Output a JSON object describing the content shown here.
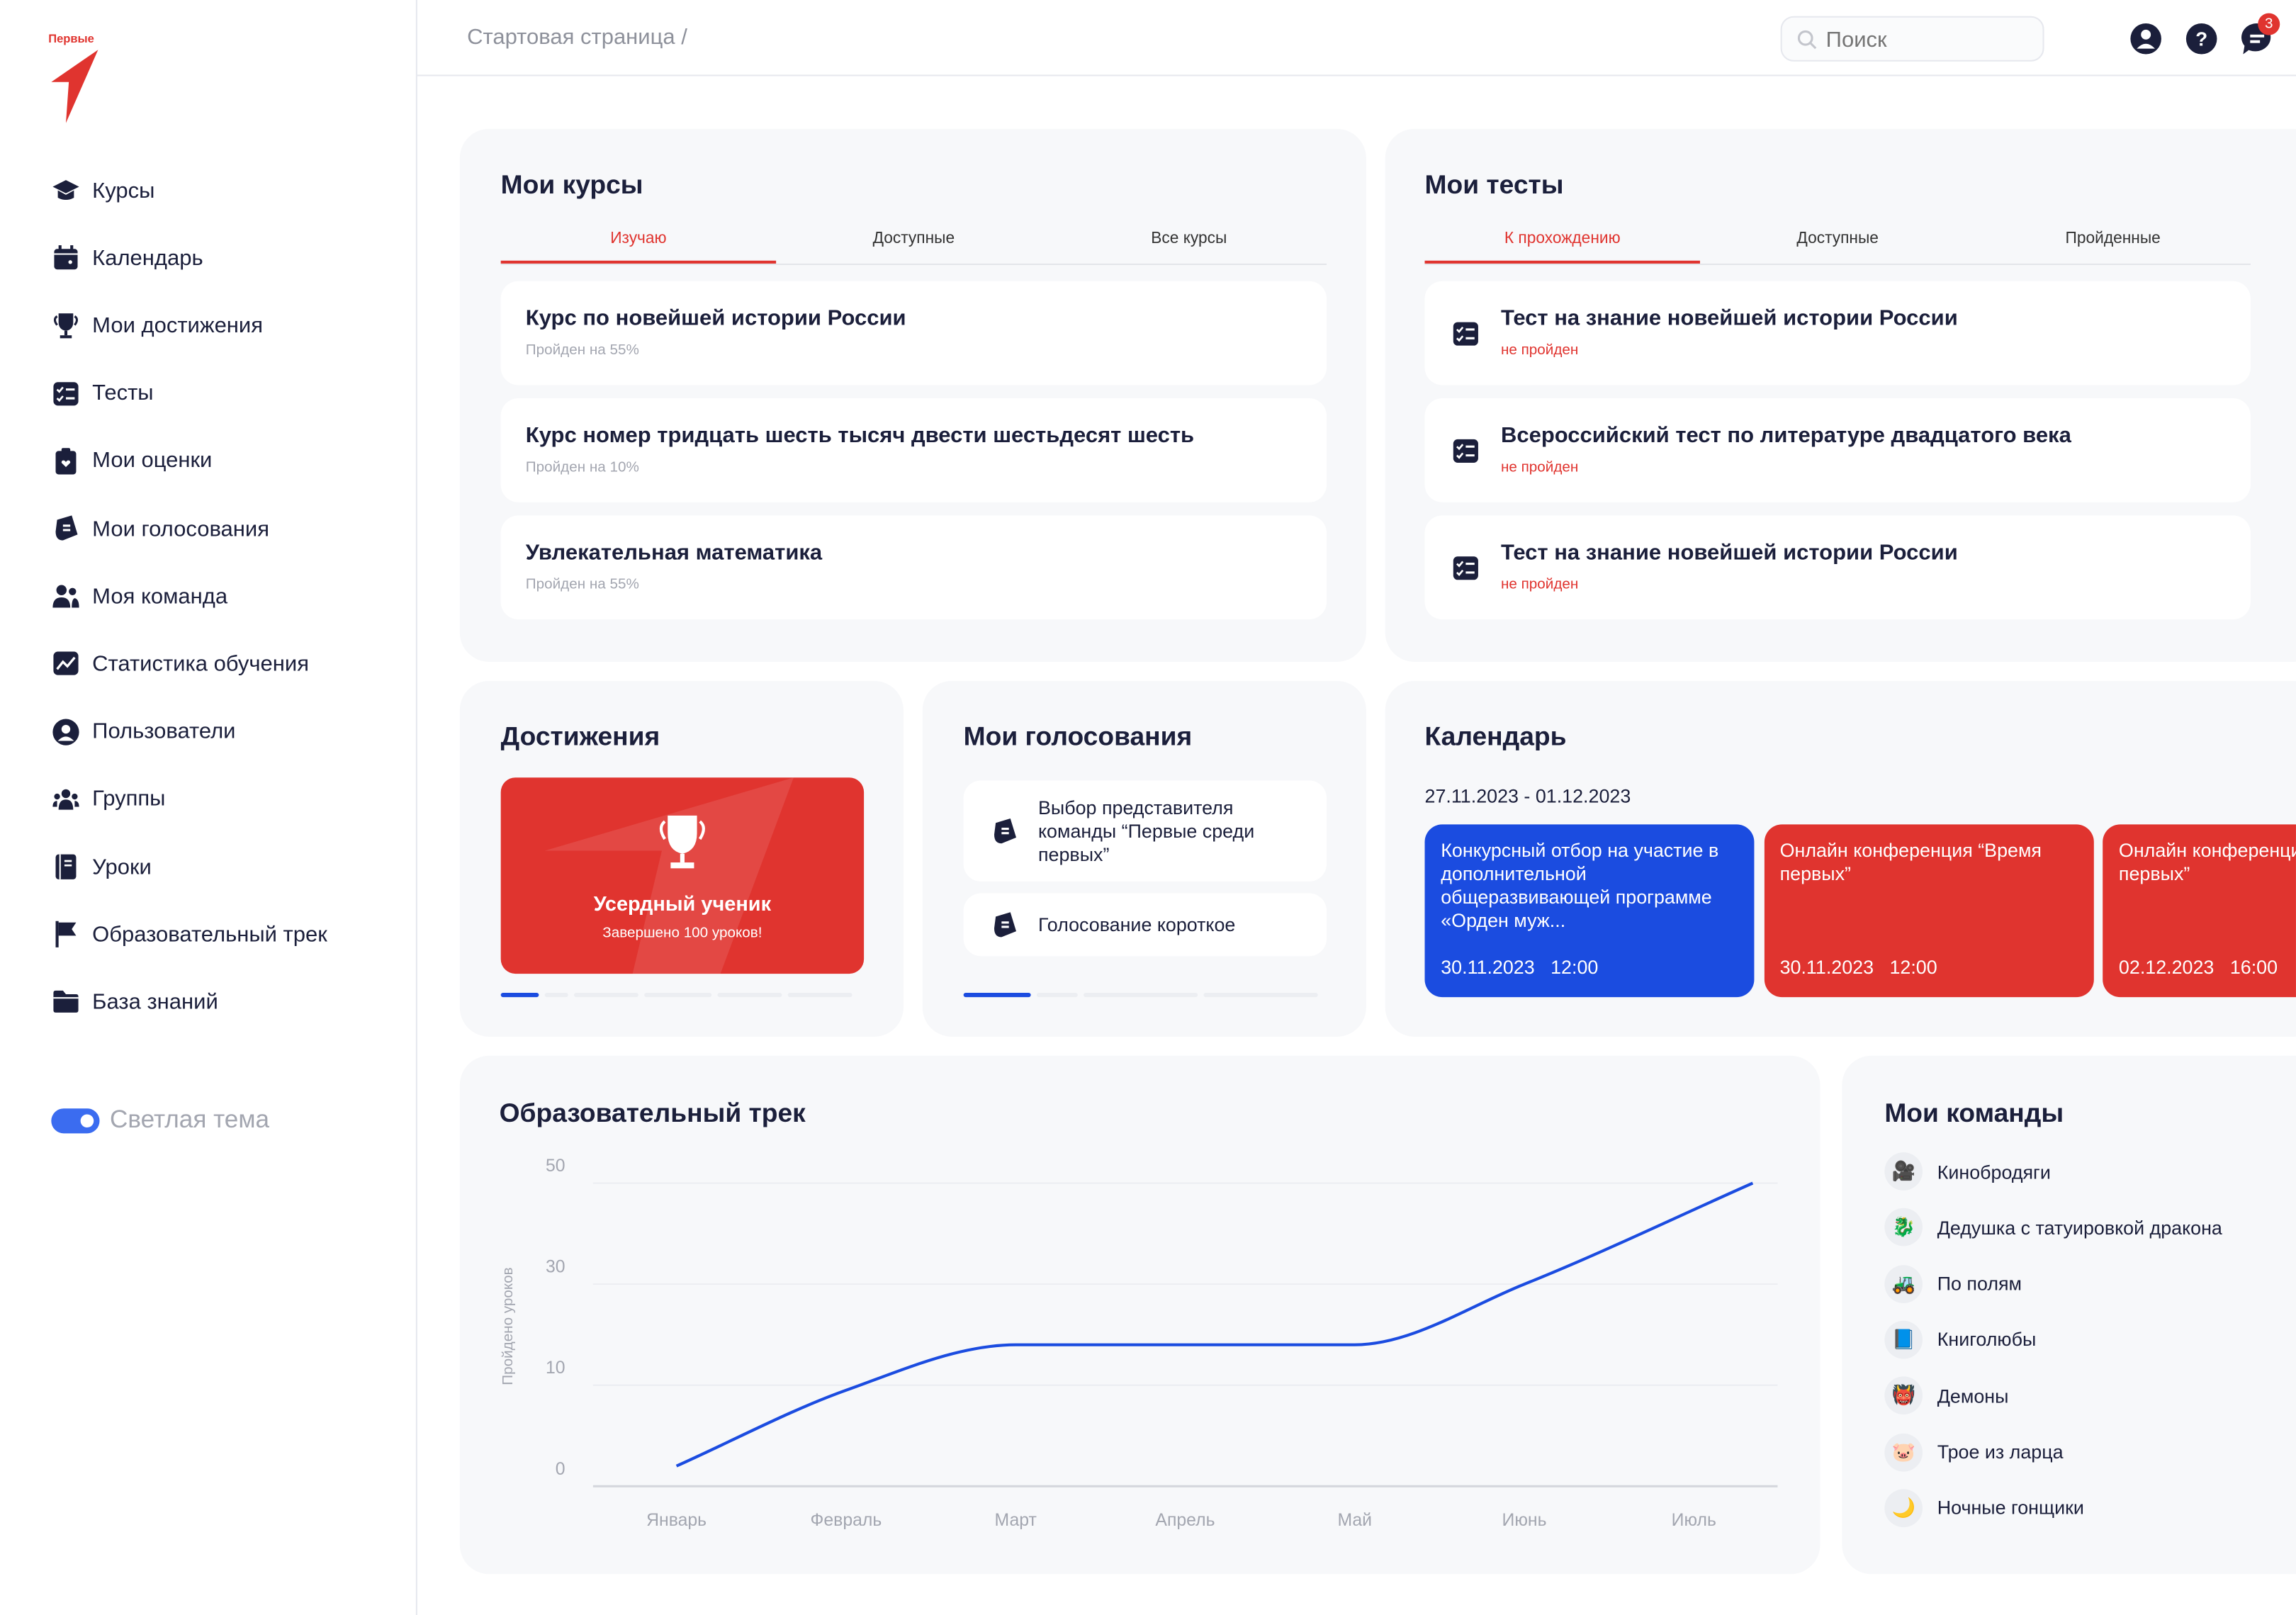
{
  "logo_text": "Первые",
  "sidebar": {
    "items": [
      {
        "label": "Курсы",
        "icon": "graduation-cap-icon"
      },
      {
        "label": "Календарь",
        "icon": "calendar-icon"
      },
      {
        "label": "Мои достижения",
        "icon": "trophy-icon"
      },
      {
        "label": "Тесты",
        "icon": "checklist-icon"
      },
      {
        "label": "Мои оценки",
        "icon": "clipboard-heart-icon"
      },
      {
        "label": "Мои голосования",
        "icon": "ballot-icon"
      },
      {
        "label": "Моя команда",
        "icon": "team-icon"
      },
      {
        "label": "Статистика обучения",
        "icon": "chart-icon"
      },
      {
        "label": "Пользователи",
        "icon": "user-circle-icon"
      },
      {
        "label": "Группы",
        "icon": "groups-icon"
      },
      {
        "label": "Уроки",
        "icon": "book-icon"
      },
      {
        "label": "Образовательный трек",
        "icon": "flag-icon"
      },
      {
        "label": "База знаний",
        "icon": "folder-icon"
      }
    ],
    "theme_toggle": {
      "label": "Светлая тема",
      "on": true
    }
  },
  "header": {
    "breadcrumb": "Стартовая страница",
    "separator": "/",
    "search_placeholder": "Поиск",
    "notifications_count": "3"
  },
  "courses": {
    "title": "Мои курсы",
    "tabs": [
      "Изучаю",
      "Доступные",
      "Все курсы"
    ],
    "active_tab": 0,
    "items": [
      {
        "title": "Курс по новейшей истории России",
        "progress": "Пройден на 55%"
      },
      {
        "title": "Курс номер тридцать шесть тысяч двести шестьдесят шесть",
        "progress": "Пройден на 10%"
      },
      {
        "title": "Увлекательная математика",
        "progress": "Пройден на 55%"
      }
    ]
  },
  "tests": {
    "title": "Мои тесты",
    "tabs": [
      "К прохождению",
      "Доступные",
      "Пройденные"
    ],
    "active_tab": 0,
    "items": [
      {
        "title": "Тест на знание новейшей истории России",
        "status": "не пройден"
      },
      {
        "title": "Всероссийский тест по литературе двадцатого века",
        "status": "не пройден"
      },
      {
        "title": "Тест на знание новейшей истории России",
        "status": "не пройден"
      }
    ]
  },
  "achievements": {
    "title": "Достижения",
    "card_title": "Усердный ученик",
    "card_sub": "Завершено 100 уроков!",
    "slide": 1,
    "slides": 6
  },
  "votes": {
    "title": "Мои голосования",
    "items": [
      {
        "title": "Выбор представителя команды “Первые среди первых”"
      },
      {
        "title": "Голосование короткое"
      }
    ],
    "slide": 1,
    "slides": 4
  },
  "calendar": {
    "title": "Календарь",
    "range": "27.11.2023 - 01.12.2023",
    "events": [
      {
        "title": "Конкурсный отбор на участие в дополнительной общеразвивающей программе «Орден муж...",
        "date": "30.11.2023",
        "time": "12:00",
        "color": "#1b4ce0"
      },
      {
        "title": "Онлайн конференция “Время первых”",
        "date": "30.11.2023",
        "time": "12:00",
        "color": "#e0342f"
      },
      {
        "title": "Онлайн конференция “Время первых”",
        "date": "02.12.2023",
        "time": "16:00",
        "color": "#e0342f"
      }
    ]
  },
  "track": {
    "title": "Образовательный трек"
  },
  "chart_data": {
    "type": "line",
    "title": "Образовательный трек",
    "xlabel": "",
    "ylabel": "Пройдено уроков",
    "categories": [
      "Январь",
      "Февраль",
      "Март",
      "Апрель",
      "Май",
      "Июнь",
      "Июль"
    ],
    "series": [
      {
        "name": "Пройдено уроков",
        "values": [
          2,
          9.5,
          18,
          18,
          18,
          30,
          50
        ],
        "color": "#1b4ce0"
      }
    ],
    "yticks": [
      0,
      10,
      30,
      50
    ],
    "ylim": [
      0,
      50
    ],
    "grid": true
  },
  "teams": {
    "title": "Мои команды",
    "items": [
      {
        "name": "Кинобродяги",
        "icon": "🎥"
      },
      {
        "name": "Дедушка с татуировкой дракона",
        "icon": "🐉"
      },
      {
        "name": "По полям",
        "icon": "🚜"
      },
      {
        "name": "Книголюбы",
        "icon": "📘"
      },
      {
        "name": "Демоны",
        "icon": "👹"
      },
      {
        "name": "Трое из ларца",
        "icon": "🐷"
      },
      {
        "name": "Ночные гонщики",
        "icon": "🌙"
      }
    ]
  }
}
